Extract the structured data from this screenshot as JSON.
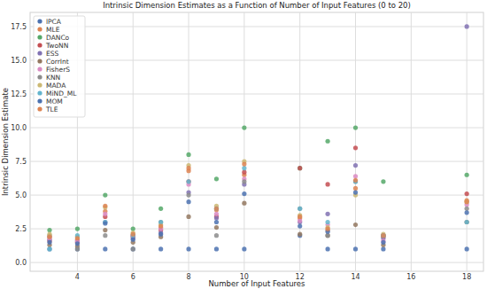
{
  "chart_data": {
    "type": "scatter",
    "title": "Intrinsic Dimension Estimates as a Function of Number of Input Features (0 to 20)",
    "x_label": "Number of Input Features",
    "y_label": "Intrinsic Dimension Estimate",
    "x": [
      3,
      4,
      5,
      6,
      7,
      8,
      9,
      10,
      12,
      13,
      14,
      15,
      18
    ],
    "series": [
      {
        "name": "lPCA",
        "color": "#4c72b0",
        "values": [
          1,
          1,
          1,
          1,
          1,
          1,
          1,
          1,
          2,
          1,
          1,
          1,
          1
        ]
      },
      {
        "name": "MLE",
        "color": "#dd8452",
        "values": [
          1.9,
          1.7,
          3.8,
          2.0,
          2.6,
          6.8,
          3.9,
          6.5,
          3.3,
          2.4,
          5.5,
          1.9,
          4.6
        ]
      },
      {
        "name": "DANCo",
        "color": "#55a868",
        "values": [
          2.4,
          2.5,
          5.0,
          2.5,
          4.0,
          8.0,
          6.2,
          10.0,
          7.0,
          9.0,
          10.0,
          6.0,
          6.5
        ]
      },
      {
        "name": "TwoNN",
        "color": "#c44e52",
        "values": [
          1.6,
          1.5,
          3.4,
          1.9,
          2.4,
          6.0,
          3.4,
          6.7,
          7.0,
          5.8,
          8.5,
          2.0,
          5.1
        ]
      },
      {
        "name": "ESS",
        "color": "#8172b3",
        "values": [
          1.7,
          1.6,
          3.0,
          1.8,
          2.2,
          5.2,
          3.3,
          5.8,
          3.0,
          3.6,
          7.2,
          1.8,
          17.5
        ]
      },
      {
        "name": "CorrInt",
        "color": "#937860",
        "values": [
          1.3,
          1.2,
          2.4,
          1.5,
          1.9,
          3.4,
          2.6,
          4.4,
          2.1,
          2.0,
          2.8,
          1.3,
          3.0
        ]
      },
      {
        "name": "FisherS",
        "color": "#da8bc3",
        "values": [
          1.8,
          1.6,
          3.6,
          2.0,
          2.5,
          5.8,
          3.6,
          6.2,
          3.1,
          2.8,
          6.4,
          1.6,
          4.3
        ]
      },
      {
        "name": "KNN",
        "color": "#8c8c8c",
        "values": [
          2.0,
          1.0,
          2.0,
          1.0,
          3.0,
          5.0,
          2.0,
          6.0,
          4.0,
          2.0,
          6.0,
          2.0,
          4.0
        ]
      },
      {
        "name": "MADA",
        "color": "#ccb974",
        "values": [
          2.1,
          1.9,
          4.1,
          2.2,
          2.8,
          7.2,
          4.2,
          7.5,
          3.5,
          2.6,
          5.0,
          2.1,
          4.5
        ]
      },
      {
        "name": "MiND_ML",
        "color": "#64b5cd",
        "values": [
          1.0,
          2.0,
          3.0,
          2.0,
          3.0,
          6.0,
          4.0,
          7.0,
          4.0,
          3.0,
          6.0,
          2.0,
          3.0
        ]
      },
      {
        "name": "MOM",
        "color": "#4c72b0",
        "values": [
          1.5,
          1.4,
          2.9,
          1.7,
          2.1,
          4.5,
          3.0,
          5.1,
          2.7,
          2.3,
          5.2,
          1.5,
          3.7
        ]
      },
      {
        "name": "TLE",
        "color": "#dd8452",
        "values": [
          1.9,
          1.8,
          4.2,
          2.1,
          2.7,
          7.0,
          4.0,
          7.3,
          3.4,
          2.5,
          6.1,
          2.0,
          4.5
        ]
      }
    ],
    "xlim": [
      2.3,
      18.6
    ],
    "ylim": [
      -0.65,
      18.55
    ],
    "xticks": [
      4,
      6,
      8,
      10,
      12,
      14,
      16,
      18
    ],
    "yticks": [
      {
        "value": 0,
        "label": "0.0"
      },
      {
        "value": 2.5,
        "label": "2.5"
      },
      {
        "value": 5,
        "label": "5.0"
      },
      {
        "value": 7.5,
        "label": "7.5"
      },
      {
        "value": 10,
        "label": "10.0"
      },
      {
        "value": 12.5,
        "label": "12.5"
      },
      {
        "value": 15,
        "label": "15.0"
      },
      {
        "value": 17.5,
        "label": "17.5"
      }
    ],
    "grid": true,
    "legend": "upper left"
  }
}
